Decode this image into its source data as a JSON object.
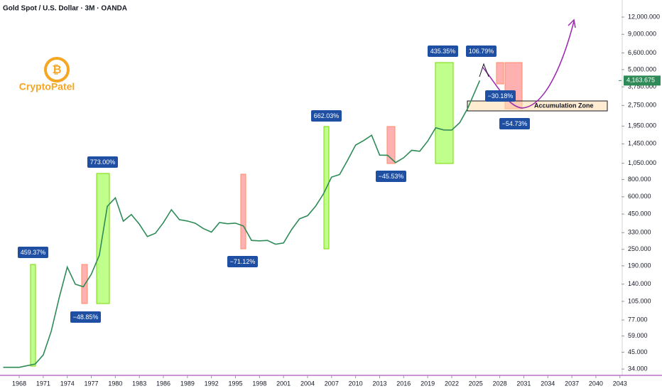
{
  "chart_data": {
    "type": "line",
    "title": "Gold Spot / U.S. Dollar · 3M · OANDA",
    "watermark": "CryptoPatel",
    "log_scale": true,
    "color": "#2e8b57",
    "x": [
      1966,
      1968,
      1970,
      1971,
      1972,
      1973,
      1974,
      1975,
      1976,
      1977,
      1978,
      1979,
      1980,
      1981,
      1982,
      1983,
      1984,
      1985,
      1986,
      1987,
      1988,
      1989,
      1990,
      1991,
      1992,
      1993,
      1994,
      1995,
      1996,
      1997,
      1998,
      1999,
      2000,
      2001,
      2002,
      2003,
      2004,
      2005,
      2006,
      2007,
      2008,
      2009,
      2010,
      2011,
      2012,
      2013,
      2014,
      2015,
      2016,
      2017,
      2018,
      2019,
      2020,
      2021,
      2022,
      2023,
      2024,
      2025.5
    ],
    "values": [
      35,
      35,
      37,
      43,
      64,
      112,
      186,
      140,
      134,
      165,
      226,
      512,
      590,
      400,
      447,
      380,
      309,
      327,
      390,
      484,
      410,
      401,
      386,
      353,
      333,
      391,
      383,
      387,
      369,
      290,
      288,
      290,
      272,
      278,
      347,
      416,
      438,
      513,
      632,
      834,
      870,
      1104,
      1420,
      1531,
      1675,
      1202,
      1199,
      1061,
      1150,
      1303,
      1282,
      1517,
      1898,
      1829,
      1824,
      2063,
      2624,
      4163.675
    ],
    "xlim": [
      1965.6,
      2043.2
    ],
    "ylim": [
      30.6,
      15950
    ],
    "xticks": [
      1968,
      1971,
      1974,
      1977,
      1980,
      1983,
      1986,
      1989,
      1992,
      1995,
      1998,
      2001,
      2004,
      2007,
      2010,
      2013,
      2016,
      2019,
      2022,
      2025,
      2028,
      2031,
      2034,
      2037,
      2040,
      2043
    ],
    "yticks": [
      {
        "value": 12000,
        "label": "12,000.000"
      },
      {
        "value": 9000,
        "label": "9,000.000"
      },
      {
        "value": 6600,
        "label": "6,600.000"
      },
      {
        "value": 5000,
        "label": "5,000.000"
      },
      {
        "value": 3750,
        "label": "3,750.000"
      },
      {
        "value": 2750,
        "label": "2,750.000"
      },
      {
        "value": 1950,
        "label": "1,950.000"
      },
      {
        "value": 1450,
        "label": "1,450.000"
      },
      {
        "value": 1050,
        "label": "1,050.000"
      },
      {
        "value": 800,
        "label": "800.000"
      },
      {
        "value": 600,
        "label": "600.000"
      },
      {
        "value": 450,
        "label": "450.000"
      },
      {
        "value": 330,
        "label": "330.000"
      },
      {
        "value": 250,
        "label": "250.000"
      },
      {
        "value": 190,
        "label": "190.000"
      },
      {
        "value": 140,
        "label": "140.000"
      },
      {
        "value": 105,
        "label": "105.000"
      },
      {
        "value": 77,
        "label": "77.000"
      },
      {
        "value": 59,
        "label": "59.000"
      },
      {
        "value": 45,
        "label": "45.000"
      },
      {
        "value": 34,
        "label": "34.000"
      }
    ],
    "last_price": {
      "value": 4163.675,
      "label": "4,163.675"
    },
    "annotations": [
      "459.37%",
      "−48.85%",
      "773.00%",
      "−71.12%",
      "662.03%",
      "−45.53%",
      "435.35%",
      "106.79%",
      "−30.18%",
      "−54.73%"
    ],
    "zone_label": "Accumulation Zone"
  }
}
